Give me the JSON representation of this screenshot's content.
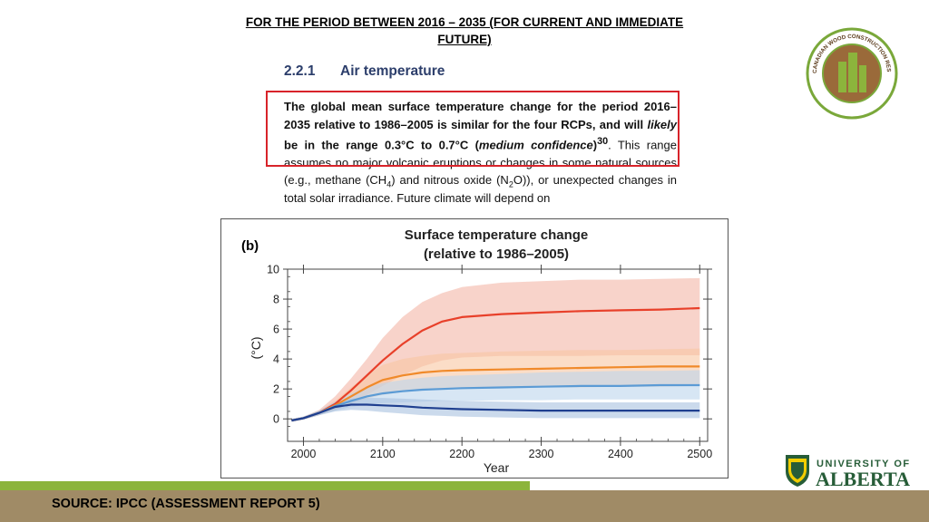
{
  "slide": {
    "title": "FOR THE PERIOD BETWEEN 2016 – 2035 (FOR CURRENT AND IMMEDIATE FUTURE)",
    "source": "SOURCE: IPCC (ASSESSMENT REPORT 5)"
  },
  "excerpt": {
    "section_number": "2.2.1",
    "section_title": "Air temperature",
    "p1": "The global mean surface temperature change for the period 2016–2035 relative to 1986–2005 is similar for the four RCPs, and will",
    "p2_italic": "likely",
    "p3": " be in the range 0.3°C to 0.7°C (",
    "p4_italic": "medium confidence",
    "p5": ")",
    "p5_sup": "30",
    "p6": ". This range assumes no major volcanic eruptions or changes in some natural sources (e.g., methane (CH",
    "p6_sub": "4",
    "p7": ") and nitrous oxide (N",
    "p7_sub": "2",
    "p8": "O)), or unexpected changes in total solar irradiance. Future climate will depend on"
  },
  "logos": {
    "cwc_text": "CANADIAN WOOD CONSTRUCTION RESEARCH NETWORK",
    "ua_line1": "UNIVERSITY OF",
    "ua_line2": "ALBERTA"
  },
  "colors": {
    "highlight_border": "#d8232a",
    "rcp85": "#e8402a",
    "rcp60": "#f08a2a",
    "rcp45": "#5b9bd5",
    "rcp26": "#1f3f8f"
  },
  "chart_data": {
    "type": "line",
    "panel_label": "(b)",
    "title": "Surface temperature change",
    "subtitle": "(relative to 1986–2005)",
    "xlabel": "Year",
    "ylabel": "(°C)",
    "xlim": [
      1980,
      2510
    ],
    "ylim": [
      -1.5,
      10
    ],
    "xticks": [
      2000,
      2100,
      2200,
      2300,
      2400,
      2500
    ],
    "yticks": [
      0,
      2,
      4,
      6,
      8,
      10
    ],
    "x": [
      1985,
      2000,
      2020,
      2040,
      2060,
      2080,
      2100,
      2125,
      2150,
      2175,
      2200,
      2250,
      2300,
      2350,
      2400,
      2450,
      2500
    ],
    "series": [
      {
        "color": "#e8402a",
        "band_color": "#f4b6a6",
        "values": [
          -0.1,
          0.05,
          0.4,
          1.0,
          1.9,
          2.9,
          3.9,
          5.0,
          5.9,
          6.5,
          6.8,
          7.0,
          7.1,
          7.2,
          7.25,
          7.3,
          7.4
        ],
        "lower": [
          -0.2,
          -0.05,
          0.25,
          0.6,
          1.1,
          1.6,
          2.2,
          2.9,
          3.5,
          3.9,
          4.1,
          4.2,
          4.2,
          4.2,
          4.25,
          4.25,
          4.25
        ],
        "upper": [
          0.0,
          0.15,
          0.6,
          1.5,
          2.7,
          4.0,
          5.4,
          6.8,
          7.8,
          8.4,
          8.8,
          9.1,
          9.2,
          9.3,
          9.3,
          9.35,
          9.4
        ]
      },
      {
        "color": "#f08a2a",
        "band_color": "#f9c7a2",
        "values": [
          -0.1,
          0.05,
          0.4,
          0.9,
          1.5,
          2.1,
          2.6,
          2.9,
          3.1,
          3.2,
          3.25,
          3.3,
          3.35,
          3.4,
          3.45,
          3.5,
          3.5
        ],
        "lower": [
          -0.2,
          -0.05,
          0.25,
          0.6,
          1.0,
          1.35,
          1.6,
          1.8,
          1.9,
          1.95,
          2.0,
          2.05,
          2.1,
          2.1,
          2.15,
          2.15,
          2.2
        ],
        "upper": [
          0.0,
          0.15,
          0.55,
          1.2,
          2.1,
          2.9,
          3.6,
          4.0,
          4.2,
          4.35,
          4.4,
          4.5,
          4.55,
          4.6,
          4.6,
          4.65,
          4.7
        ]
      },
      {
        "color": "#5b9bd5",
        "band_color": "#bcd5ec",
        "values": [
          -0.1,
          0.05,
          0.4,
          0.85,
          1.2,
          1.5,
          1.7,
          1.85,
          1.95,
          2.0,
          2.05,
          2.1,
          2.15,
          2.2,
          2.2,
          2.25,
          2.25
        ],
        "lower": [
          -0.2,
          -0.05,
          0.25,
          0.55,
          0.8,
          0.95,
          1.05,
          1.1,
          1.15,
          1.2,
          1.2,
          1.25,
          1.25,
          1.3,
          1.3,
          1.3,
          1.3
        ],
        "upper": [
          0.0,
          0.15,
          0.55,
          1.15,
          1.7,
          2.1,
          2.4,
          2.6,
          2.75,
          2.85,
          2.9,
          3.0,
          3.1,
          3.15,
          3.2,
          3.2,
          3.25
        ]
      },
      {
        "color": "#1f3f8f",
        "band_color": "#a8c2e0",
        "values": [
          -0.1,
          0.05,
          0.4,
          0.8,
          0.95,
          0.95,
          0.9,
          0.85,
          0.75,
          0.7,
          0.65,
          0.6,
          0.55,
          0.55,
          0.55,
          0.55,
          0.55
        ],
        "lower": [
          -0.2,
          -0.05,
          0.25,
          0.5,
          0.6,
          0.55,
          0.45,
          0.35,
          0.25,
          0.2,
          0.15,
          0.1,
          0.05,
          0.05,
          0.05,
          0.05,
          0.05
        ],
        "upper": [
          0.0,
          0.15,
          0.55,
          1.1,
          1.35,
          1.4,
          1.4,
          1.35,
          1.3,
          1.25,
          1.2,
          1.15,
          1.1,
          1.1,
          1.1,
          1.1,
          1.1
        ]
      }
    ]
  }
}
